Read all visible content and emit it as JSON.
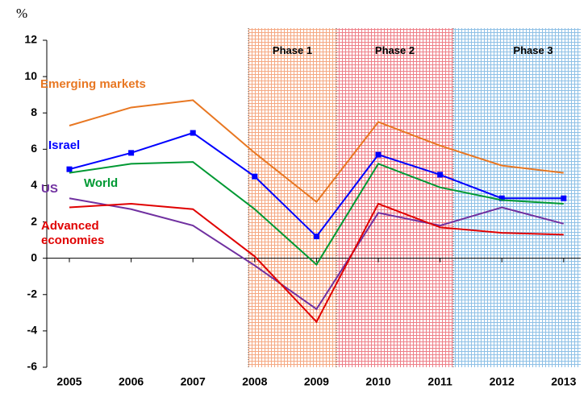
{
  "chart_data": {
    "type": "line",
    "y_axis_label": "%",
    "categories": [
      "2005",
      "2006",
      "2007",
      "2008",
      "2009",
      "2010",
      "2011",
      "2012",
      "2013"
    ],
    "series": [
      {
        "name": "Emerging markets",
        "color": "#e87722",
        "values": [
          7.3,
          8.3,
          8.7,
          5.8,
          3.1,
          7.5,
          6.2,
          5.1,
          4.7
        ]
      },
      {
        "name": "Israel",
        "color": "#0000ff",
        "marker": "square",
        "values": [
          4.9,
          5.8,
          6.9,
          4.5,
          1.2,
          5.7,
          4.6,
          3.3,
          3.3
        ]
      },
      {
        "name": "World",
        "color": "#009933",
        "values": [
          4.7,
          5.2,
          5.3,
          2.7,
          -0.35,
          5.2,
          3.9,
          3.2,
          3.0
        ]
      },
      {
        "name": "US",
        "color": "#7030a0",
        "values": [
          3.3,
          2.7,
          1.8,
          -0.4,
          -2.8,
          2.5,
          1.8,
          2.8,
          1.9
        ]
      },
      {
        "name": "Advanced economies",
        "color": "#e00000",
        "values": [
          2.8,
          3.0,
          2.7,
          0.1,
          -3.5,
          3.0,
          1.7,
          1.4,
          1.3
        ]
      }
    ],
    "ylim": [
      -6,
      12
    ],
    "yticks": [
      -6,
      -4,
      -2,
      0,
      2,
      4,
      6,
      8,
      10,
      12
    ],
    "phases": [
      {
        "label": "Phase 1",
        "color": "#f5a882"
      },
      {
        "label": "Phase 2",
        "color": "#ee7f88"
      },
      {
        "label": "Phase 3",
        "color": "#8ec0e6"
      }
    ]
  }
}
